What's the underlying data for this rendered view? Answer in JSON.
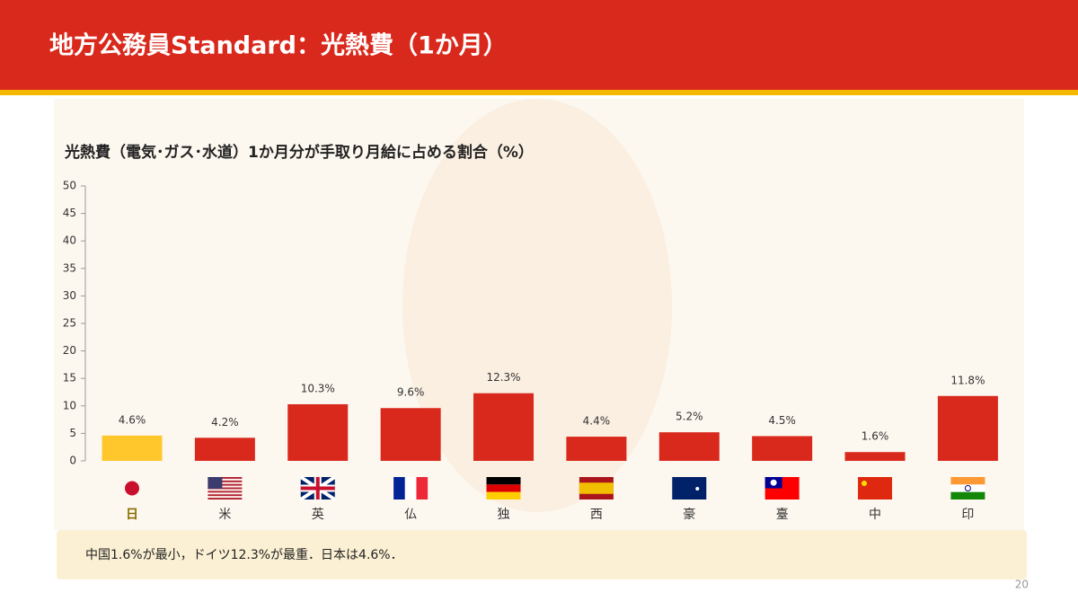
{
  "header": {
    "title": "地方公務員Standard：光熱費（1か月）"
  },
  "chart_data": {
    "type": "bar",
    "title": "光熱費（電気･ガス･水道）1か月分が手取り月給に占める割合（%）",
    "categories": [
      "日",
      "米",
      "英",
      "仏",
      "独",
      "西",
      "豪",
      "臺",
      "中",
      "印"
    ],
    "values": [
      4.6,
      4.2,
      10.3,
      9.6,
      12.3,
      4.4,
      5.2,
      4.5,
      1.6,
      11.8
    ],
    "value_labels": [
      "4.6%",
      "4.2%",
      "10.3%",
      "9.6%",
      "12.3%",
      "4.4%",
      "5.2%",
      "4.5%",
      "1.6%",
      "11.8%"
    ],
    "colors": [
      "#ffc72c",
      "#d9291c",
      "#d9291c",
      "#d9291c",
      "#d9291c",
      "#d9291c",
      "#d9291c",
      "#d9291c",
      "#d9291c",
      "#d9291c"
    ],
    "ylim": [
      0,
      50
    ],
    "yticks": [
      0,
      5,
      10,
      15,
      20,
      25,
      30,
      35,
      40,
      45,
      50
    ],
    "grid": false
  },
  "note": "中国1.6%が最小，ドイツ12.3%が最重．日本は4.6%．",
  "page_number": "20"
}
